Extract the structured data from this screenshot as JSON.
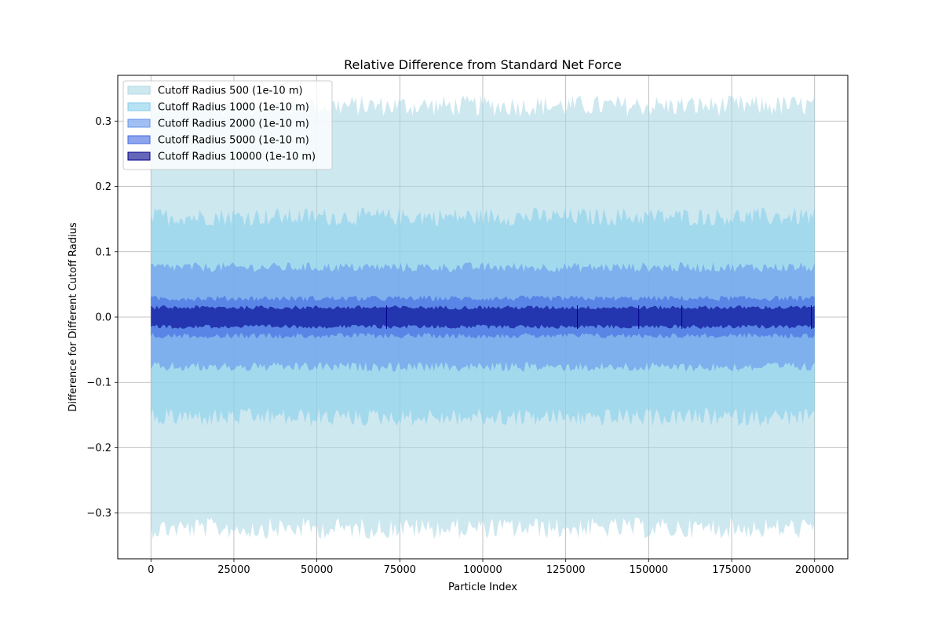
{
  "chart_data": {
    "type": "area",
    "title": "Relative Difference from Standard Net Force",
    "xlabel": "Particle Index",
    "ylabel": "Difference for Different Cutoff Radius",
    "xlim": [
      -10000,
      210000
    ],
    "ylim": [
      -0.37,
      0.37
    ],
    "x_ticks": [
      0,
      25000,
      50000,
      75000,
      100000,
      125000,
      150000,
      175000,
      200000
    ],
    "x_tick_labels": [
      "0",
      "25000",
      "50000",
      "75000",
      "100000",
      "125000",
      "150000",
      "175000",
      "200000"
    ],
    "y_ticks": [
      -0.3,
      -0.2,
      -0.1,
      0.0,
      0.1,
      0.2,
      0.3
    ],
    "y_tick_labels": [
      "−0.3",
      "−0.2",
      "−0.1",
      "0.0",
      "0.1",
      "0.2",
      "0.3"
    ],
    "grid": true,
    "legend_position": "top-left",
    "x_range": [
      0,
      200000
    ],
    "series": [
      {
        "name": "Cutoff Radius 500 (1e-10 m)",
        "color": "#add8e6",
        "opacity": 0.6,
        "upper_typical": 0.325,
        "upper_max": 0.34,
        "lower_typical": -0.325,
        "lower_min": -0.34
      },
      {
        "name": "Cutoff Radius 1000 (1e-10 m)",
        "color": "#87ceeb",
        "opacity": 0.6,
        "upper_typical": 0.155,
        "upper_max": 0.168,
        "lower_typical": -0.155,
        "lower_min": -0.168
      },
      {
        "name": "Cutoff Radius 2000 (1e-10 m)",
        "color": "#6495ed",
        "opacity": 0.6,
        "upper_typical": 0.077,
        "upper_max": 0.084,
        "lower_typical": -0.077,
        "lower_min": -0.084
      },
      {
        "name": "Cutoff Radius 5000 (1e-10 m)",
        "color": "#4169e1",
        "opacity": 0.6,
        "upper_typical": 0.029,
        "upper_max": 0.033,
        "lower_typical": -0.029,
        "lower_min": -0.033
      },
      {
        "name": "Cutoff Radius 10000 (1e-10 m)",
        "color": "#00008b",
        "opacity": 0.6,
        "upper_typical": 0.015,
        "upper_max": 0.018,
        "lower_typical": -0.015,
        "lower_min": -0.018
      }
    ]
  }
}
